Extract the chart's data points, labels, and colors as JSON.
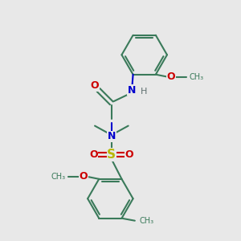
{
  "bg_color": "#e8e8e8",
  "bond_color": "#3a7a5a",
  "o_color": "#cc0000",
  "n_color": "#0000cc",
  "s_color": "#b8b800",
  "h_color": "#607070",
  "lw": 1.5,
  "figsize": [
    3.0,
    3.0
  ],
  "dpi": 100,
  "xlim": [
    0,
    10
  ],
  "ylim": [
    0,
    10
  ]
}
